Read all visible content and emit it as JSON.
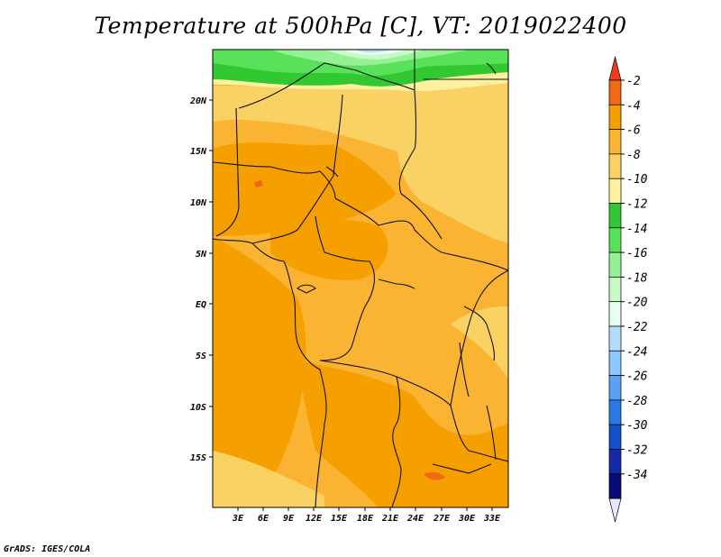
{
  "title": "Temperature at 500hPa [C], VT: 2019022400",
  "credit": "GrADS: IGES/COLA",
  "map": {
    "lat_labels": [
      "20N",
      "15N",
      "10N",
      "5N",
      "EQ",
      "5S",
      "10S",
      "15S"
    ],
    "lon_labels": [
      "3E",
      "6E",
      "9E",
      "12E",
      "15E",
      "18E",
      "21E",
      "24E",
      "27E",
      "30E",
      "33E"
    ]
  },
  "colorbar": {
    "labels": [
      "-2",
      "-4",
      "-6",
      "-8",
      "-10",
      "-12",
      "-14",
      "-16",
      "-18",
      "-20",
      "-22",
      "-24",
      "-26",
      "-28",
      "-30",
      "-32",
      "-34"
    ],
    "colors": [
      "#f03c1e",
      "#f06a14",
      "#f5a000",
      "#fab432",
      "#fad264",
      "#fff0a0",
      "#32c832",
      "#5ae15a",
      "#96f096",
      "#c8fac8",
      "#e6fff0",
      "#b4dcff",
      "#8cc8ff",
      "#5aa0f5",
      "#2878e6",
      "#1450c8",
      "#1428aa",
      "#0a0a78",
      "#e6e6ff"
    ]
  }
}
